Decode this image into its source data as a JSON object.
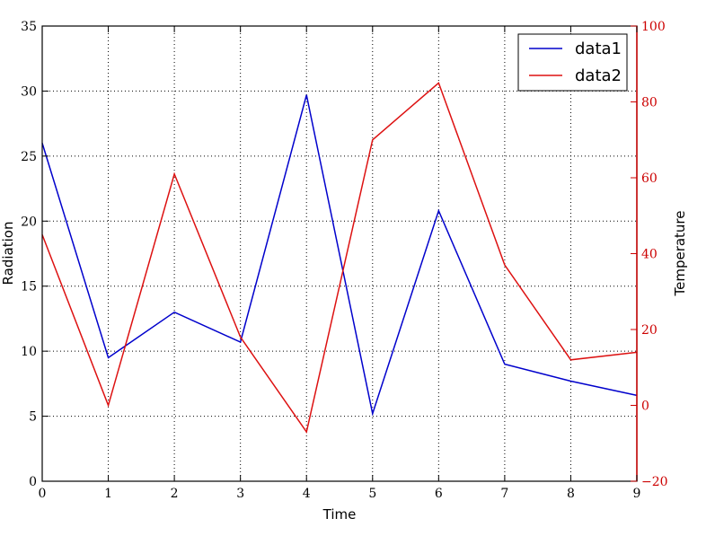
{
  "chart_data": {
    "type": "line",
    "x": [
      0,
      1,
      2,
      3,
      4,
      5,
      6,
      7,
      8,
      9
    ],
    "xlabel": "Time",
    "xlim": [
      0,
      9
    ],
    "xticks": [
      "0",
      "1",
      "2",
      "3",
      "4",
      "5",
      "6",
      "7",
      "8",
      "9"
    ],
    "grid": true,
    "legend_position": "top-right",
    "axes": {
      "left": {
        "label": "Radiation",
        "lim": [
          0,
          35
        ],
        "ticks": [
          "0",
          "5",
          "10",
          "15",
          "20",
          "25",
          "30",
          "35"
        ],
        "color": "#000000"
      },
      "right": {
        "label": "Temperature",
        "lim": [
          -20,
          100
        ],
        "ticks": [
          "−20",
          "0",
          "20",
          "40",
          "60",
          "80",
          "100"
        ],
        "color": "#cc0000"
      }
    },
    "series": [
      {
        "name": "data1",
        "axis": "left",
        "color": "#0000cc",
        "values": [
          26.0,
          9.5,
          13.0,
          10.7,
          29.7,
          5.2,
          20.8,
          9.0,
          7.7,
          6.6
        ]
      },
      {
        "name": "data2",
        "axis": "right",
        "color": "#dd1111",
        "values": [
          45,
          0,
          61,
          18,
          -7,
          70,
          85,
          37,
          12,
          14
        ]
      }
    ]
  }
}
